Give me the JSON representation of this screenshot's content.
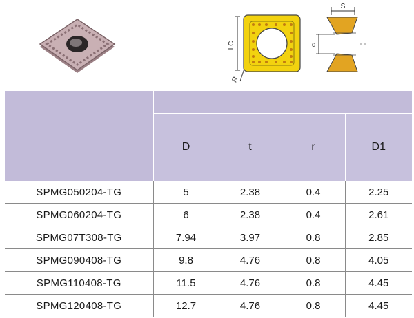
{
  "diagram": {
    "label_ic": "I.C",
    "label_r": "R",
    "label_s": "S",
    "label_d": "d"
  },
  "table": {
    "columns": [
      "D",
      "t",
      "r",
      "D1"
    ],
    "rows": [
      {
        "model": "SPMG050204-TG",
        "D": "5",
        "t": "2.38",
        "r": "0.4",
        "D1": "2.25"
      },
      {
        "model": "SPMG060204-TG",
        "D": "6",
        "t": "2.38",
        "r": "0.4",
        "D1": "2.61"
      },
      {
        "model": "SPMG07T308-TG",
        "D": "7.94",
        "t": "3.97",
        "r": "0.8",
        "D1": "2.85"
      },
      {
        "model": "SPMG090408-TG",
        "D": "9.8",
        "t": "4.76",
        "r": "0.8",
        "D1": "4.05"
      },
      {
        "model": "SPMG110408-TG",
        "D": "11.5",
        "t": "4.76",
        "r": "0.8",
        "D1": "4.45"
      },
      {
        "model": "SPMG120408-TG",
        "D": "12.7",
        "t": "4.76",
        "r": "0.8",
        "D1": "4.45"
      }
    ]
  },
  "colors": {
    "header_bg": "#c7c1dd",
    "insert_yellow": "#f2d20f",
    "insert_body": "#b89a9f"
  }
}
